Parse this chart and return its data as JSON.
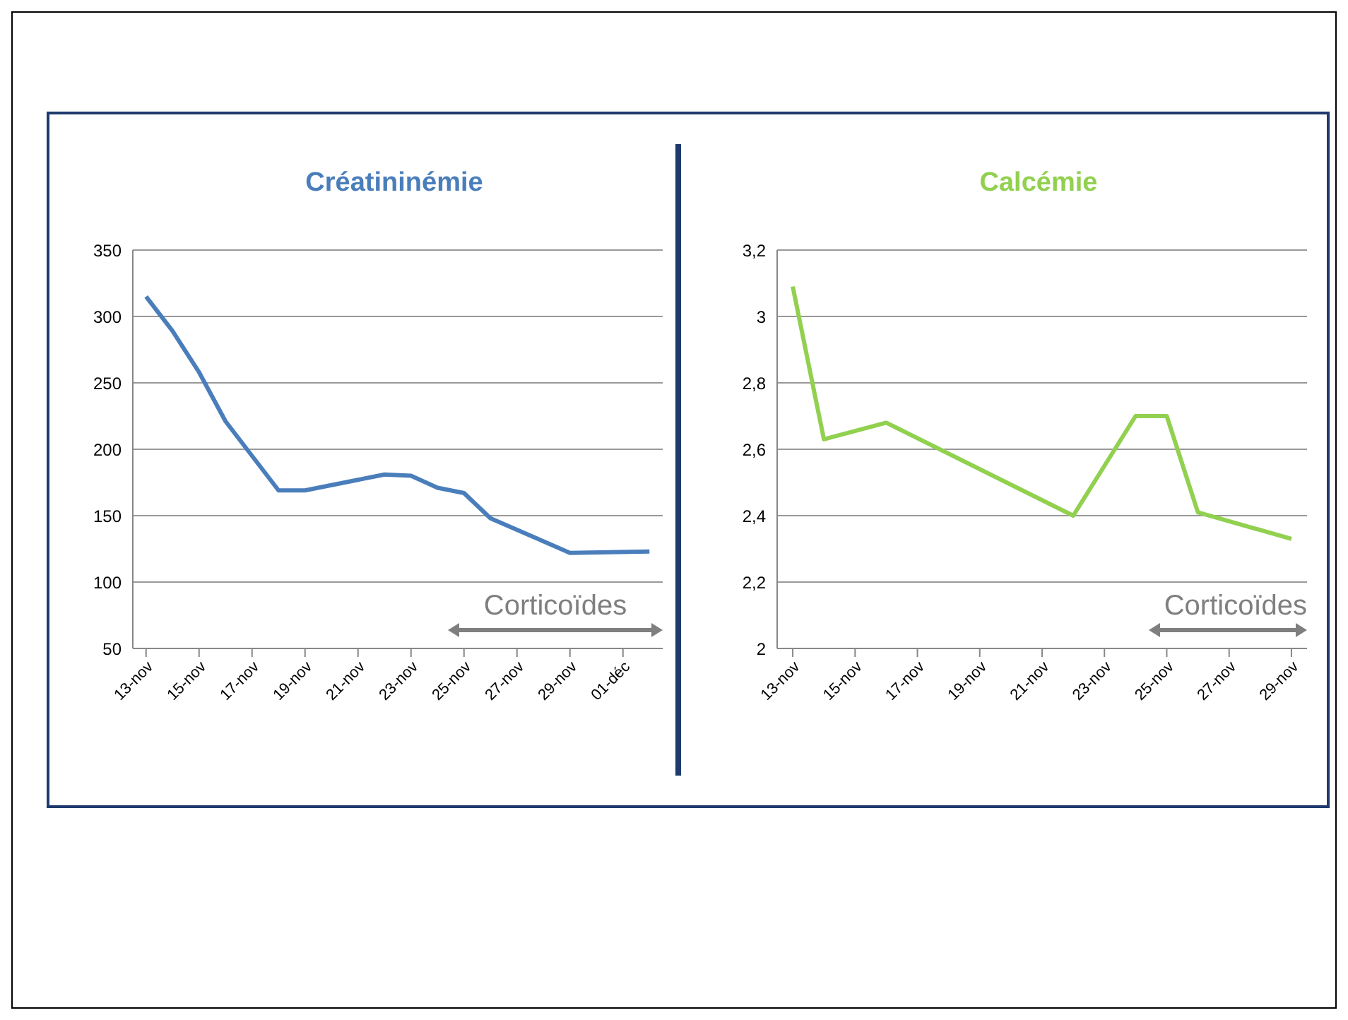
{
  "chart_data": [
    {
      "type": "line",
      "title": "Créatininémie",
      "x": [
        "--11-13",
        "--11-14",
        "--11-15",
        "--11-16",
        "--11-18",
        "--11-19",
        "--11-22",
        "--11-23",
        "--11-24",
        "--11-25",
        "--11-26",
        "--11-29",
        "--12-02"
      ],
      "series": [
        {
          "color": "#4a7ebb",
          "values": [
            315,
            289,
            258,
            221,
            169,
            169,
            181,
            180,
            171,
            167,
            148,
            122,
            123
          ]
        }
      ],
      "xlim": [
        "--11-12T12:00",
        "--12-02T12:00"
      ],
      "xticks": [
        {
          "value": "--11-13",
          "label": "13-nov"
        },
        {
          "value": "--11-15",
          "label": "15-nov"
        },
        {
          "value": "--11-17",
          "label": "17-nov"
        },
        {
          "value": "--11-19",
          "label": "19-nov"
        },
        {
          "value": "--11-21",
          "label": "21-nov"
        },
        {
          "value": "--11-23",
          "label": "23-nov"
        },
        {
          "value": "--11-25",
          "label": "25-nov"
        },
        {
          "value": "--11-27",
          "label": "27-nov"
        },
        {
          "value": "--11-29",
          "label": "29-nov"
        },
        {
          "value": "--12-01",
          "label": "01-déc"
        }
      ],
      "ylim": [
        50,
        350
      ],
      "yticks": [
        50,
        100,
        150,
        200,
        250,
        300,
        350
      ],
      "grid": "y",
      "marker": "none",
      "annotations": [
        "Corticoïdes"
      ]
    },
    {
      "type": "line",
      "title": "Calcémie",
      "x": [
        "--11-13",
        "--11-14",
        "--11-16",
        "--11-22",
        "--11-23",
        "--11-24",
        "--11-25",
        "--11-26",
        "--11-29"
      ],
      "series": [
        {
          "color": "#92d050",
          "values": [
            3.09,
            2.63,
            2.68,
            2.4,
            2.55,
            2.7,
            2.7,
            2.41,
            2.33
          ]
        }
      ],
      "xlim": [
        "--11-12T12:00",
        "--11-29T12:00"
      ],
      "xticks": [
        {
          "value": "--11-13",
          "label": "13-nov"
        },
        {
          "value": "--11-15",
          "label": "15-nov"
        },
        {
          "value": "--11-17",
          "label": "17-nov"
        },
        {
          "value": "--11-19",
          "label": "19-nov"
        },
        {
          "value": "--11-21",
          "label": "21-nov"
        },
        {
          "value": "--11-23",
          "label": "23-nov"
        },
        {
          "value": "--11-25",
          "label": "25-nov"
        },
        {
          "value": "--11-27",
          "label": "27-nov"
        },
        {
          "value": "--11-29",
          "label": "29-nov"
        }
      ],
      "ylim": [
        2,
        3.2
      ],
      "yticks": [
        2,
        {
          "value": 2.2,
          "label": "2,2"
        },
        {
          "value": 2.4,
          "label": "2,4"
        },
        {
          "value": 2.6,
          "label": "2,6"
        },
        {
          "value": 2.8,
          "label": "2,8"
        },
        3,
        {
          "value": 3.2,
          "label": "3,2"
        }
      ],
      "grid": "y",
      "marker": "none",
      "annotations": [
        "Corticoïdes"
      ]
    }
  ]
}
